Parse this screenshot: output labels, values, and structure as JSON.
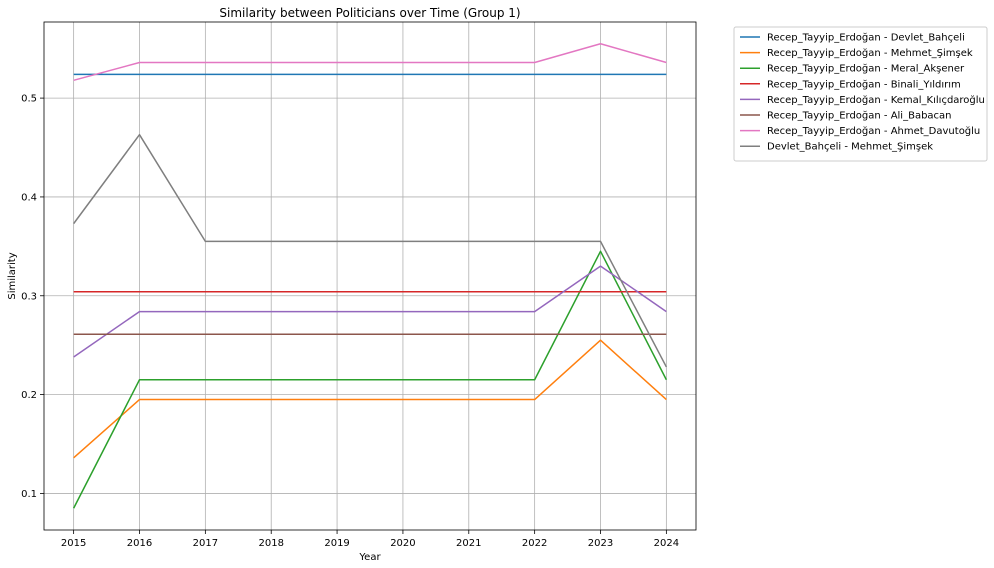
{
  "chart_data": {
    "type": "line",
    "title": "Similarity between Politicians over Time (Group 1)",
    "xlabel": "Year",
    "ylabel": "Similarity",
    "x": [
      2015,
      2016,
      2017,
      2018,
      2019,
      2020,
      2021,
      2022,
      2023,
      2024
    ],
    "xlim": [
      2014.55,
      2024.45
    ],
    "ylim": [
      0.063,
      0.577
    ],
    "yticks": [
      0.1,
      0.2,
      0.3,
      0.4,
      0.5
    ],
    "ytick_labels": [
      "0.1",
      "0.2",
      "0.3",
      "0.4",
      "0.5"
    ],
    "xtick_labels": [
      "2015",
      "2016",
      "2017",
      "2018",
      "2019",
      "2020",
      "2021",
      "2022",
      "2023",
      "2024"
    ],
    "grid": true,
    "legend_placement": "outside upper right",
    "series": [
      {
        "name": "Recep_Tayyip_Erdoğan - Devlet_Bahçeli",
        "color": "#1f77b4",
        "values": [
          0.524,
          0.524,
          0.524,
          0.524,
          0.524,
          0.524,
          0.524,
          0.524,
          0.524,
          0.524
        ]
      },
      {
        "name": "Recep_Tayyip_Erdoğan - Mehmet_Şimşek",
        "color": "#ff7f0e",
        "values": [
          0.136,
          0.195,
          0.195,
          0.195,
          0.195,
          0.195,
          0.195,
          0.195,
          0.255,
          0.195
        ]
      },
      {
        "name": "Recep_Tayyip_Erdoğan - Meral_Akşener",
        "color": "#2ca02c",
        "values": [
          0.085,
          0.215,
          0.215,
          0.215,
          0.215,
          0.215,
          0.215,
          0.215,
          0.345,
          0.215
        ]
      },
      {
        "name": "Recep_Tayyip_Erdoğan - Binali_Yıldırım",
        "color": "#d62728",
        "values": [
          0.304,
          0.304,
          0.304,
          0.304,
          0.304,
          0.304,
          0.304,
          0.304,
          0.304,
          0.304
        ]
      },
      {
        "name": "Recep_Tayyip_Erdoğan - Kemal_Kılıçdaroğlu",
        "color": "#9467bd",
        "values": [
          0.238,
          0.284,
          0.284,
          0.284,
          0.284,
          0.284,
          0.284,
          0.284,
          0.33,
          0.284
        ]
      },
      {
        "name": "Recep_Tayyip_Erdoğan - Ali_Babacan",
        "color": "#8c564b",
        "values": [
          0.261,
          0.261,
          0.261,
          0.261,
          0.261,
          0.261,
          0.261,
          0.261,
          0.261,
          0.261
        ]
      },
      {
        "name": "Recep_Tayyip_Erdoğan - Ahmet_Davutoğlu",
        "color": "#e377c2",
        "values": [
          0.518,
          0.536,
          0.536,
          0.536,
          0.536,
          0.536,
          0.536,
          0.536,
          0.555,
          0.536
        ]
      },
      {
        "name": "Devlet_Bahçeli - Mehmet_Şimşek",
        "color": "#7f7f7f",
        "values": [
          0.373,
          0.463,
          0.355,
          0.355,
          0.355,
          0.355,
          0.355,
          0.355,
          0.355,
          0.228
        ]
      }
    ]
  }
}
